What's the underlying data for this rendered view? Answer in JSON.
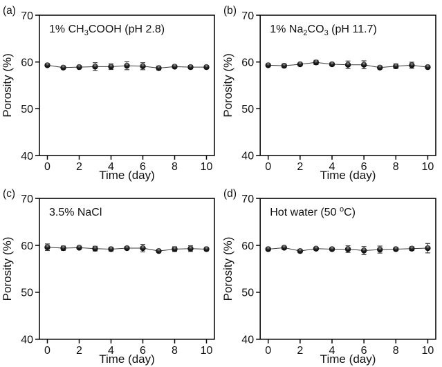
{
  "figure": {
    "background": "#ffffff",
    "axis_color": "#000000",
    "text_color": "#111111",
    "line_color": "#3a3a3a",
    "marker_color": "#000000",
    "errorbar_color": "#3d3d3d"
  },
  "chart_data": [
    {
      "type": "scatter",
      "connected": true,
      "error_bars": true,
      "grid": false,
      "legend": null,
      "panel_label": "(a)",
      "title_plain": "1% CH3COOH (pH 2.8)",
      "title_segments": [
        {
          "t": "1% CH"
        },
        {
          "t": "3",
          "s": "sub"
        },
        {
          "t": "COOH (pH 2.8)"
        }
      ],
      "xlabel": "Time (day)",
      "ylabel": "Porosity (%)",
      "x": [
        0,
        1,
        2,
        3,
        4,
        5,
        6,
        7,
        8,
        9,
        10
      ],
      "y": [
        59.3,
        58.8,
        58.9,
        59.0,
        59.0,
        59.2,
        59.1,
        58.7,
        59.0,
        58.9,
        58.9
      ],
      "yerr": [
        0.3,
        0.25,
        0.25,
        0.85,
        0.6,
        0.85,
        0.75,
        0.4,
        0.3,
        0.35,
        0.3
      ],
      "xlim": [
        -0.5,
        10.5
      ],
      "ylim": [
        40,
        70
      ],
      "xticks": [
        0,
        2,
        4,
        6,
        8,
        10
      ],
      "yticks": [
        40,
        50,
        60,
        70
      ]
    },
    {
      "type": "scatter",
      "connected": true,
      "error_bars": true,
      "grid": false,
      "legend": null,
      "panel_label": "(b)",
      "title_plain": "1% Na2CO3 (pH 11.7)",
      "title_segments": [
        {
          "t": "1% Na"
        },
        {
          "t": "2",
          "s": "sub"
        },
        {
          "t": "CO"
        },
        {
          "t": "3",
          "s": "sub"
        },
        {
          "t": " (pH 11.7)"
        }
      ],
      "xlabel": "Time (day)",
      "ylabel": "Porosity (%)",
      "x": [
        0,
        1,
        2,
        3,
        4,
        5,
        6,
        7,
        8,
        9,
        10
      ],
      "y": [
        59.3,
        59.2,
        59.5,
        59.9,
        59.5,
        59.4,
        59.4,
        58.8,
        59.1,
        59.3,
        58.9
      ],
      "yerr": [
        0.3,
        0.35,
        0.3,
        0.45,
        0.35,
        0.8,
        0.85,
        0.3,
        0.5,
        0.65,
        0.3
      ],
      "xlim": [
        -0.5,
        10.5
      ],
      "ylim": [
        40,
        70
      ],
      "xticks": [
        0,
        2,
        4,
        6,
        8,
        10
      ],
      "yticks": [
        40,
        50,
        60,
        70
      ]
    },
    {
      "type": "scatter",
      "connected": true,
      "error_bars": true,
      "grid": false,
      "legend": null,
      "panel_label": "(c)",
      "title_plain": "3.5% NaCl",
      "title_segments": [
        {
          "t": "3.5% NaCl"
        }
      ],
      "xlabel": "Time (day)",
      "ylabel": "Porosity (%)",
      "x": [
        0,
        1,
        2,
        3,
        4,
        5,
        6,
        7,
        8,
        9,
        10
      ],
      "y": [
        59.6,
        59.4,
        59.5,
        59.3,
        59.2,
        59.4,
        59.4,
        58.8,
        59.2,
        59.3,
        59.2
      ],
      "yerr": [
        0.7,
        0.45,
        0.3,
        0.5,
        0.4,
        0.35,
        0.8,
        0.3,
        0.5,
        0.6,
        0.35
      ],
      "xlim": [
        -0.5,
        10.5
      ],
      "ylim": [
        40,
        70
      ],
      "xticks": [
        0,
        2,
        4,
        6,
        8,
        10
      ],
      "yticks": [
        40,
        50,
        60,
        70
      ]
    },
    {
      "type": "scatter",
      "connected": true,
      "error_bars": true,
      "grid": false,
      "legend": null,
      "panel_label": "(d)",
      "title_plain": "Hot water (50 oC)",
      "title_segments": [
        {
          "t": "Hot water (50 "
        },
        {
          "t": "o",
          "s": "sup"
        },
        {
          "t": "C)"
        }
      ],
      "xlabel": "Time (day)",
      "ylabel": "Porosity (%)",
      "x": [
        0,
        1,
        2,
        3,
        4,
        5,
        6,
        7,
        8,
        9,
        10
      ],
      "y": [
        59.2,
        59.5,
        58.8,
        59.3,
        59.2,
        59.2,
        58.9,
        59.1,
        59.2,
        59.3,
        59.4
      ],
      "yerr": [
        0.3,
        0.3,
        0.35,
        0.3,
        0.3,
        0.7,
        0.85,
        0.75,
        0.3,
        0.4,
        1.0
      ],
      "xlim": [
        -0.5,
        10.5
      ],
      "ylim": [
        40,
        70
      ],
      "xticks": [
        0,
        2,
        4,
        6,
        8,
        10
      ],
      "yticks": [
        40,
        50,
        60,
        70
      ]
    }
  ]
}
